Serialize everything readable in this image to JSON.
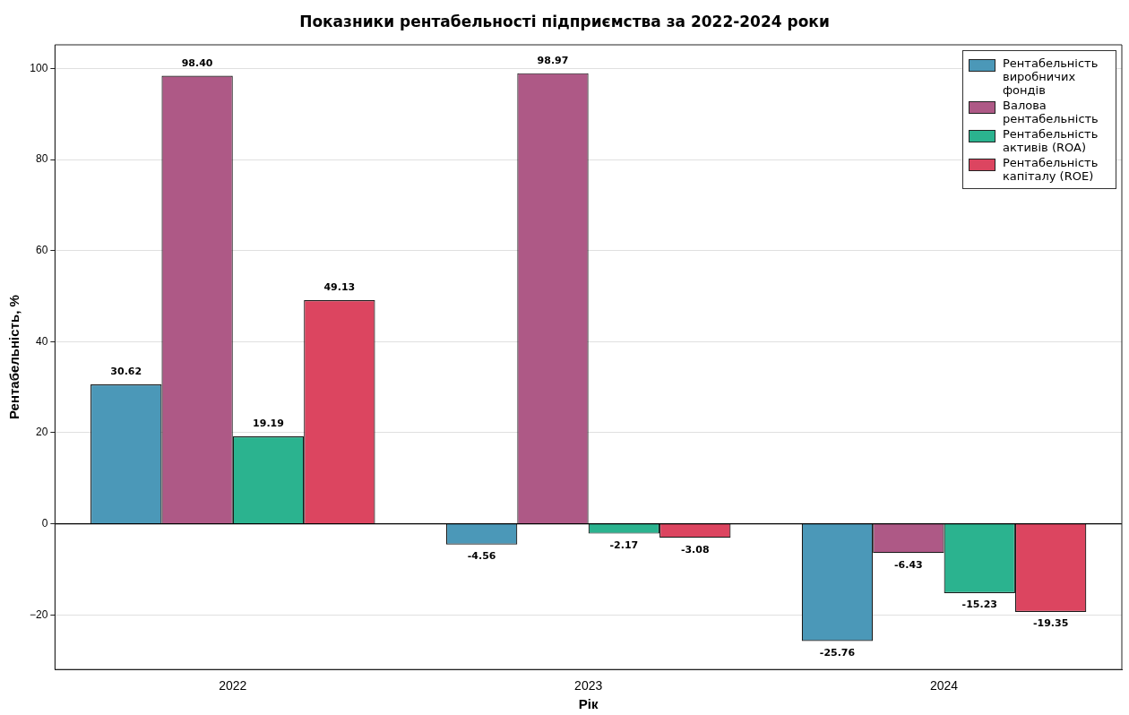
{
  "chart_data": {
    "type": "bar",
    "title": "Показники рентабельності підприємства за 2022-2024 роки",
    "xlabel": "Рік",
    "ylabel": "Рентабельність, %",
    "categories": [
      "2022",
      "2023",
      "2024"
    ],
    "series": [
      {
        "name": "Рентабельність виробничих фондів",
        "color": "#4b98b8",
        "values": [
          30.62,
          -4.56,
          -25.76
        ],
        "value_labels": [
          "30.62",
          "-4.56",
          "-25.76"
        ]
      },
      {
        "name": "Валова рентабельність",
        "color": "#ae5986",
        "values": [
          98.4,
          98.97,
          -6.43
        ],
        "value_labels": [
          "98.40",
          "98.97",
          "-6.43"
        ]
      },
      {
        "name": "Рентабельність активів (ROA)",
        "color": "#2bb38f",
        "values": [
          19.19,
          -2.17,
          -15.23
        ],
        "value_labels": [
          "19.19",
          "-2.17",
          "-15.23"
        ]
      },
      {
        "name": "Рентабельність капіталу (ROE)",
        "color": "#dc4560",
        "values": [
          49.13,
          -3.08,
          -19.35
        ],
        "value_labels": [
          "49.13",
          "-3.08",
          "-19.35"
        ]
      }
    ],
    "ylim": [
      -32,
      105.2
    ],
    "yticks": [
      {
        "value": -20,
        "label": "−20"
      },
      0,
      20,
      40,
      60,
      80,
      100
    ],
    "ref_lines": [
      {
        "axis": "y",
        "value": 0,
        "color": "#000000"
      }
    ],
    "grid": "y",
    "legend": "top right"
  }
}
